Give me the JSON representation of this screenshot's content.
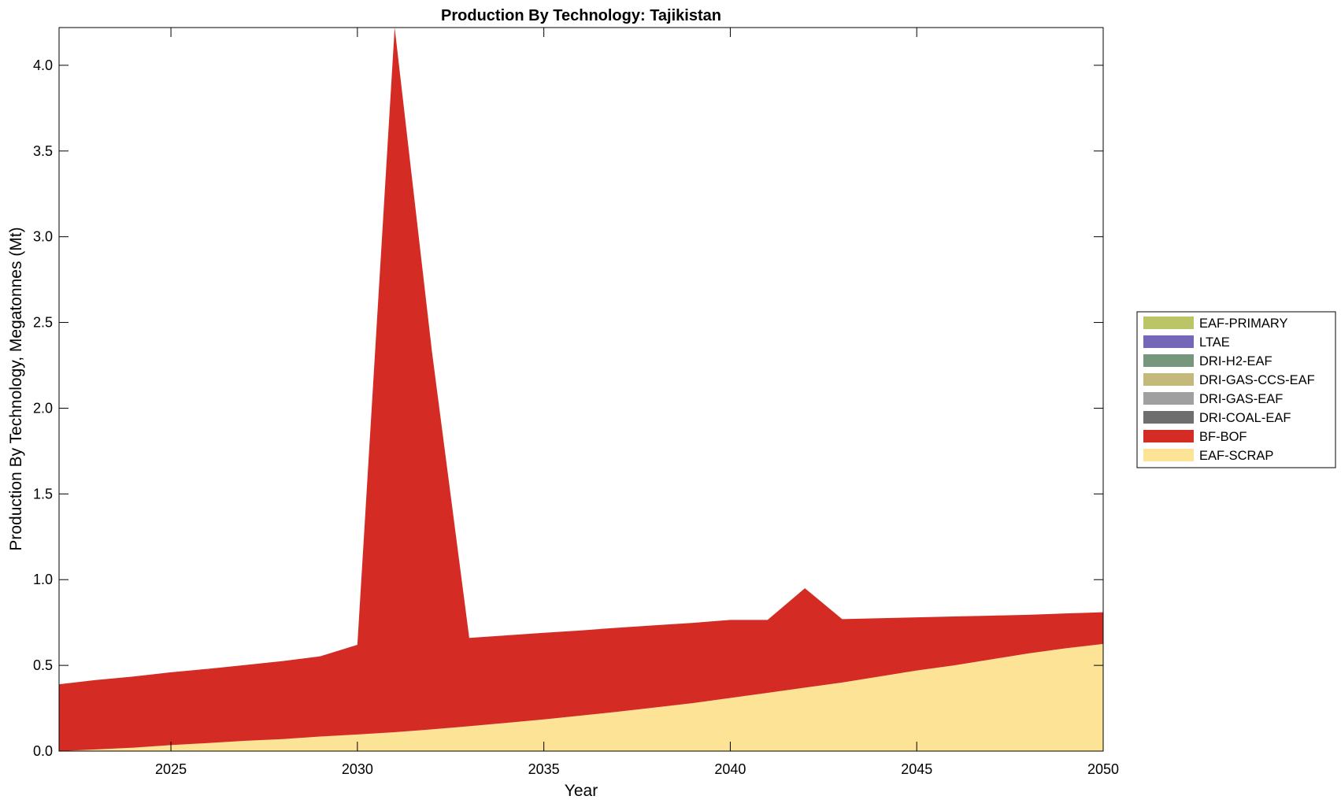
{
  "chart_data": {
    "type": "area",
    "stacked": true,
    "title": "Production By Technology: Tajikistan",
    "xlabel": "Year",
    "ylabel": "Production By Technology, Megatonnes (Mt)",
    "xlim": [
      2022,
      2050
    ],
    "ylim": [
      0,
      4.22
    ],
    "x_ticks": [
      2025,
      2030,
      2035,
      2040,
      2045,
      2050
    ],
    "x_tick_labels": [
      "2025",
      "2030",
      "2035",
      "2040",
      "2045",
      "2050"
    ],
    "y_ticks": [
      0,
      0.5,
      1,
      1.5,
      2,
      2.5,
      3,
      3.5,
      4
    ],
    "y_tick_labels": [
      "0.0",
      "0.5",
      "1.0",
      "1.5",
      "2.0",
      "2.5",
      "3.0",
      "3.5",
      "4.0"
    ],
    "grid": false,
    "legend_position": "right",
    "x": [
      2022,
      2023,
      2024,
      2025,
      2026,
      2027,
      2028,
      2029,
      2030,
      2031,
      2032,
      2033,
      2034,
      2035,
      2036,
      2037,
      2038,
      2039,
      2040,
      2041,
      2042,
      2043,
      2044,
      2045,
      2046,
      2047,
      2048,
      2049,
      2050
    ],
    "series": [
      {
        "name": "EAF-SCRAP",
        "color": "#fde396",
        "values": [
          0.0,
          0.01,
          0.02,
          0.035,
          0.047,
          0.06,
          0.07,
          0.085,
          0.097,
          0.11,
          0.127,
          0.145,
          0.165,
          0.185,
          0.207,
          0.23,
          0.255,
          0.28,
          0.31,
          0.34,
          0.37,
          0.4,
          0.435,
          0.47,
          0.5,
          0.535,
          0.57,
          0.6,
          0.625
        ]
      },
      {
        "name": "BF-BOF",
        "color": "#d42c24",
        "values": [
          0.39,
          0.405,
          0.415,
          0.425,
          0.433,
          0.442,
          0.455,
          0.468,
          0.523,
          4.11,
          2.203,
          0.515,
          0.51,
          0.505,
          0.497,
          0.49,
          0.479,
          0.468,
          0.455,
          0.425,
          0.58,
          0.37,
          0.34,
          0.31,
          0.285,
          0.255,
          0.225,
          0.203,
          0.185
        ]
      },
      {
        "name": "DRI-COAL-EAF",
        "color": "#6e6e6e",
        "values": [
          0,
          0,
          0,
          0,
          0,
          0,
          0,
          0,
          0,
          0,
          0,
          0,
          0,
          0,
          0,
          0,
          0,
          0,
          0,
          0,
          0,
          0,
          0,
          0,
          0,
          0,
          0,
          0,
          0
        ]
      },
      {
        "name": "DRI-GAS-EAF",
        "color": "#a0a0a0",
        "values": [
          0,
          0,
          0,
          0,
          0,
          0,
          0,
          0,
          0,
          0,
          0,
          0,
          0,
          0,
          0,
          0,
          0,
          0,
          0,
          0,
          0,
          0,
          0,
          0,
          0,
          0,
          0,
          0,
          0
        ]
      },
      {
        "name": "DRI-GAS-CCS-EAF",
        "color": "#c2b97b",
        "values": [
          0,
          0,
          0,
          0,
          0,
          0,
          0,
          0,
          0,
          0,
          0,
          0,
          0,
          0,
          0,
          0,
          0,
          0,
          0,
          0,
          0,
          0,
          0,
          0,
          0,
          0,
          0,
          0,
          0
        ]
      },
      {
        "name": "DRI-H2-EAF",
        "color": "#76977c",
        "values": [
          0,
          0,
          0,
          0,
          0,
          0,
          0,
          0,
          0,
          0,
          0,
          0,
          0,
          0,
          0,
          0,
          0,
          0,
          0,
          0,
          0,
          0,
          0,
          0,
          0,
          0,
          0,
          0,
          0
        ]
      },
      {
        "name": "LTAE",
        "color": "#7567b8",
        "values": [
          0,
          0,
          0,
          0,
          0,
          0,
          0,
          0,
          0,
          0,
          0,
          0,
          0,
          0,
          0,
          0,
          0,
          0,
          0,
          0,
          0,
          0,
          0,
          0,
          0,
          0,
          0,
          0,
          0
        ]
      },
      {
        "name": "EAF-PRIMARY",
        "color": "#bcc565",
        "values": [
          0,
          0,
          0,
          0,
          0,
          0,
          0,
          0,
          0,
          0,
          0,
          0,
          0,
          0,
          0,
          0,
          0,
          0,
          0,
          0,
          0,
          0,
          0,
          0,
          0,
          0,
          0,
          0,
          0
        ]
      }
    ],
    "legend_order": [
      "EAF-PRIMARY",
      "LTAE",
      "DRI-H2-EAF",
      "DRI-GAS-CCS-EAF",
      "DRI-GAS-EAF",
      "DRI-COAL-EAF",
      "BF-BOF",
      "EAF-SCRAP"
    ]
  }
}
